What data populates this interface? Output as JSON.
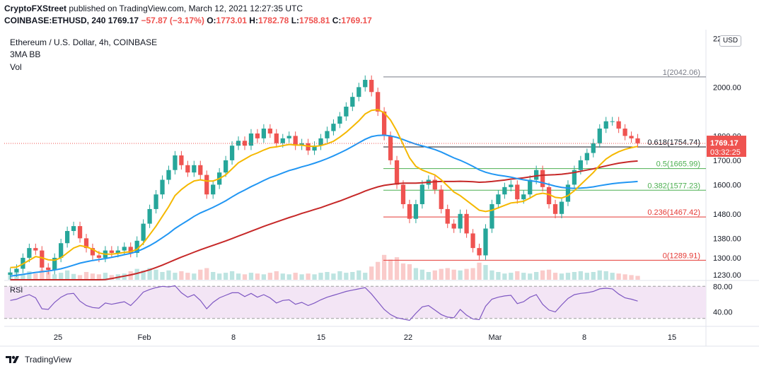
{
  "header": {
    "author": "CryptoFXStreet",
    "published_text": " published on TradingView.com, March 12, 2021 12:27:35 UTC",
    "symbol": "COINBASE:ETHUSD, 240",
    "last": "1769.17",
    "change": "−57.87 (−3.17%)",
    "o_label": "O:",
    "o_val": "1773.01",
    "h_label": "H:",
    "h_val": "1782.78",
    "l_label": "L:",
    "l_val": "1758.81",
    "c_label": "C:",
    "c_val": "1769.17"
  },
  "legend": {
    "title": "Ethereum / U.S. Dollar, 4h, COINBASE",
    "indicator": "3MA BB",
    "volume": "Vol"
  },
  "currency_button": "USD",
  "rsi_label": "RSI",
  "price_tag": {
    "price": "1769.17",
    "countdown": "03:32:25",
    "color": "#ef5350"
  },
  "fib_levels": [
    {
      "ratio": "1",
      "price": "2042.06",
      "value": 2042.06,
      "color": "#787b86"
    },
    {
      "ratio": "0.618",
      "price": "1754.74",
      "value": 1754.74,
      "color": "#131722"
    },
    {
      "ratio": "0.5",
      "price": "1665.99",
      "value": 1665.99,
      "color": "#4caf50"
    },
    {
      "ratio": "0.382",
      "price": "1577.23",
      "value": 1577.23,
      "color": "#4caf50"
    },
    {
      "ratio": "0.236",
      "price": "1467.42",
      "value": 1467.42,
      "color": "#e53935"
    },
    {
      "ratio": "0",
      "price": "1289.91",
      "value": 1289.91,
      "color": "#e53935"
    }
  ],
  "colors": {
    "up": "#26a69a",
    "down": "#ef5350",
    "ma_fast": "#f5b800",
    "ma_mid": "#2196f3",
    "ma_slow": "#c62828",
    "rsi_line": "#7e57c2",
    "rsi_band": "#f3e5f5"
  },
  "footer": {
    "brand": "TradingView",
    "logo_icon": "tradingview-logo-icon"
  },
  "chart_data": {
    "type": "candlestick",
    "title": "Ethereum / U.S. Dollar, 4h, COINBASE",
    "x_ticks": [
      "25",
      "Feb",
      "8",
      "15",
      "22",
      "Mar",
      "8",
      "15"
    ],
    "y_ticks": [
      "2200.00",
      "2000.00",
      "1800.00",
      "1700.00",
      "1600.00",
      "1480.00",
      "1380.00",
      "1300.00",
      "1230.00"
    ],
    "y_tick_values": [
      2200,
      2000,
      1800,
      1700,
      1600,
      1480,
      1380,
      1300,
      1230
    ],
    "ylim": [
      1210,
      2230
    ],
    "rsi_ticks": [
      "80.00",
      "40.00"
    ],
    "rsi_tick_values": [
      80,
      40
    ],
    "rsi_ylim": [
      22,
      88
    ],
    "close_series": [
      1240,
      1255,
      1300,
      1340,
      1330,
      1260,
      1250,
      1300,
      1360,
      1410,
      1430,
      1380,
      1340,
      1310,
      1300,
      1330,
      1320,
      1330,
      1345,
      1320,
      1370,
      1440,
      1500,
      1560,
      1620,
      1660,
      1720,
      1680,
      1650,
      1680,
      1640,
      1560,
      1600,
      1650,
      1700,
      1760,
      1780,
      1760,
      1810,
      1790,
      1830,
      1810,
      1770,
      1790,
      1800,
      1760,
      1770,
      1740,
      1760,
      1790,
      1820,
      1850,
      1880,
      1920,
      1960,
      2000,
      2030,
      1980,
      1900,
      1800,
      1700,
      1600,
      1520,
      1460,
      1520,
      1600,
      1620,
      1580,
      1500,
      1440,
      1420,
      1480,
      1400,
      1340,
      1310,
      1420,
      1520,
      1560,
      1590,
      1600,
      1540,
      1560,
      1620,
      1660,
      1590,
      1520,
      1480,
      1530,
      1600,
      1660,
      1700,
      1730,
      1770,
      1830,
      1860,
      1860,
      1830,
      1800,
      1790,
      1770
    ],
    "ma_fast": [
      1260,
      1262,
      1275,
      1290,
      1305,
      1300,
      1292,
      1290,
      1300,
      1320,
      1340,
      1350,
      1345,
      1335,
      1320,
      1315,
      1315,
      1318,
      1322,
      1325,
      1335,
      1360,
      1395,
      1430,
      1470,
      1510,
      1555,
      1580,
      1600,
      1615,
      1620,
      1615,
      1615,
      1625,
      1640,
      1665,
      1690,
      1705,
      1720,
      1730,
      1742,
      1752,
      1755,
      1760,
      1765,
      1763,
      1762,
      1758,
      1757,
      1760,
      1768,
      1778,
      1795,
      1815,
      1838,
      1862,
      1890,
      1905,
      1908,
      1895,
      1865,
      1820,
      1765,
      1710,
      1675,
      1660,
      1650,
      1640,
      1620,
      1595,
      1570,
      1555,
      1535,
      1515,
      1495,
      1490,
      1495,
      1505,
      1515,
      1525,
      1528,
      1532,
      1545,
      1560,
      1565,
      1560,
      1548,
      1545,
      1555,
      1575,
      1600,
      1625,
      1650,
      1680,
      1705,
      1722,
      1735,
      1745,
      1752,
      1757
    ],
    "ma_mid": [
      1225,
      1228,
      1232,
      1236,
      1240,
      1243,
      1246,
      1250,
      1255,
      1262,
      1270,
      1278,
      1284,
      1289,
      1293,
      1297,
      1302,
      1307,
      1313,
      1318,
      1326,
      1337,
      1350,
      1365,
      1382,
      1400,
      1420,
      1437,
      1453,
      1470,
      1484,
      1495,
      1507,
      1520,
      1534,
      1550,
      1565,
      1578,
      1592,
      1604,
      1617,
      1629,
      1638,
      1648,
      1658,
      1665,
      1673,
      1680,
      1688,
      1697,
      1707,
      1718,
      1730,
      1743,
      1757,
      1772,
      1786,
      1797,
      1802,
      1803,
      1800,
      1794,
      1785,
      1775,
      1766,
      1759,
      1752,
      1744,
      1734,
      1722,
      1710,
      1700,
      1688,
      1675,
      1661,
      1651,
      1644,
      1639,
      1635,
      1631,
      1625,
      1620,
      1616,
      1613,
      1608,
      1601,
      1594,
      1589,
      1586,
      1585,
      1586,
      1588,
      1591,
      1596,
      1600,
      1604,
      1607,
      1609,
      1611,
      1613
    ],
    "ma_slow": [
      1150,
      1153,
      1156,
      1159,
      1162,
      1165,
      1168,
      1171,
      1175,
      1180,
      1186,
      1192,
      1197,
      1202,
      1206,
      1211,
      1215,
      1220,
      1225,
      1230,
      1236,
      1243,
      1251,
      1260,
      1270,
      1281,
      1292,
      1303,
      1313,
      1323,
      1333,
      1342,
      1351,
      1360,
      1369,
      1379,
      1389,
      1399,
      1409,
      1419,
      1429,
      1438,
      1447,
      1456,
      1465,
      1473,
      1482,
      1490,
      1498,
      1506,
      1515,
      1524,
      1533,
      1543,
      1553,
      1563,
      1574,
      1583,
      1591,
      1597,
      1601,
      1604,
      1606,
      1606,
      1606,
      1608,
      1610,
      1612,
      1613,
      1613,
      1613,
      1614,
      1613,
      1612,
      1610,
      1611,
      1613,
      1616,
      1619,
      1623,
      1625,
      1628,
      1632,
      1636,
      1639,
      1640,
      1641,
      1643,
      1646,
      1650,
      1655,
      1660,
      1665,
      1671,
      1677,
      1683,
      1688,
      1692,
      1695,
      1697
    ],
    "rsi_series": [
      58,
      60,
      64,
      67,
      62,
      45,
      44,
      55,
      63,
      68,
      69,
      57,
      50,
      47,
      46,
      54,
      52,
      54,
      56,
      50,
      60,
      71,
      75,
      78,
      80,
      79,
      81,
      70,
      63,
      67,
      58,
      45,
      55,
      62,
      66,
      70,
      70,
      64,
      69,
      63,
      67,
      62,
      54,
      58,
      59,
      52,
      55,
      50,
      54,
      59,
      63,
      66,
      69,
      72,
      74,
      76,
      78,
      68,
      56,
      44,
      36,
      31,
      29,
      27,
      38,
      48,
      50,
      43,
      36,
      32,
      31,
      44,
      35,
      29,
      28,
      49,
      60,
      63,
      65,
      66,
      53,
      56,
      63,
      67,
      52,
      43,
      40,
      51,
      61,
      67,
      69,
      70,
      72,
      76,
      77,
      76,
      68,
      62,
      60,
      57
    ],
    "volume_series": [
      12,
      18,
      14,
      22,
      16,
      26,
      20,
      14,
      18,
      24,
      15,
      12,
      20,
      16,
      14,
      18,
      12,
      14,
      16,
      22,
      28,
      24,
      30,
      26,
      20,
      24,
      18,
      22,
      18,
      16,
      26,
      30,
      20,
      16,
      18,
      22,
      16,
      14,
      18,
      16,
      14,
      18,
      22,
      16,
      14,
      18,
      14,
      16,
      14,
      18,
      20,
      16,
      22,
      18,
      20,
      24,
      18,
      34,
      46,
      64,
      52,
      58,
      42,
      40,
      30,
      26,
      20,
      24,
      28,
      30,
      26,
      24,
      28,
      30,
      44,
      38,
      24,
      20,
      16,
      18,
      22,
      18,
      16,
      20,
      24,
      26,
      18,
      16,
      18,
      20,
      22,
      18,
      20,
      24,
      22,
      18,
      16,
      14,
      12,
      10
    ]
  }
}
